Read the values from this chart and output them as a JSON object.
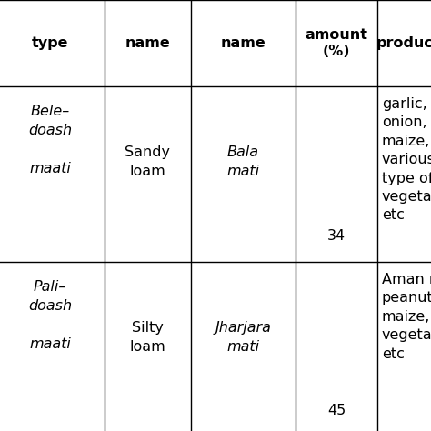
{
  "header_row": [
    "type",
    "name",
    "name",
    "amount\n(%)",
    "production"
  ],
  "row1_col0": "Bele–\ndoash\n\nmaati",
  "row1_col1": "Sandy\nloam",
  "row1_col2": "Bala\nmati",
  "row1_col3": "34",
  "row1_col4": "garlic,\nonion,\nmaize,\nvarious\ntype of\nvegetables,\netc",
  "row2_col0": "Pali–\ndoash\n\nmaati",
  "row2_col1": "Silty\nloam",
  "row2_col2": "Jharjara\nmati",
  "row2_col3": "45",
  "row2_col4": "Aman rice,\npeanut,\nmaize,\nvegetable,\netc",
  "bg_color": "#ffffff",
  "text_color": "#000000",
  "line_color": "#000000",
  "font_size": 11.5
}
